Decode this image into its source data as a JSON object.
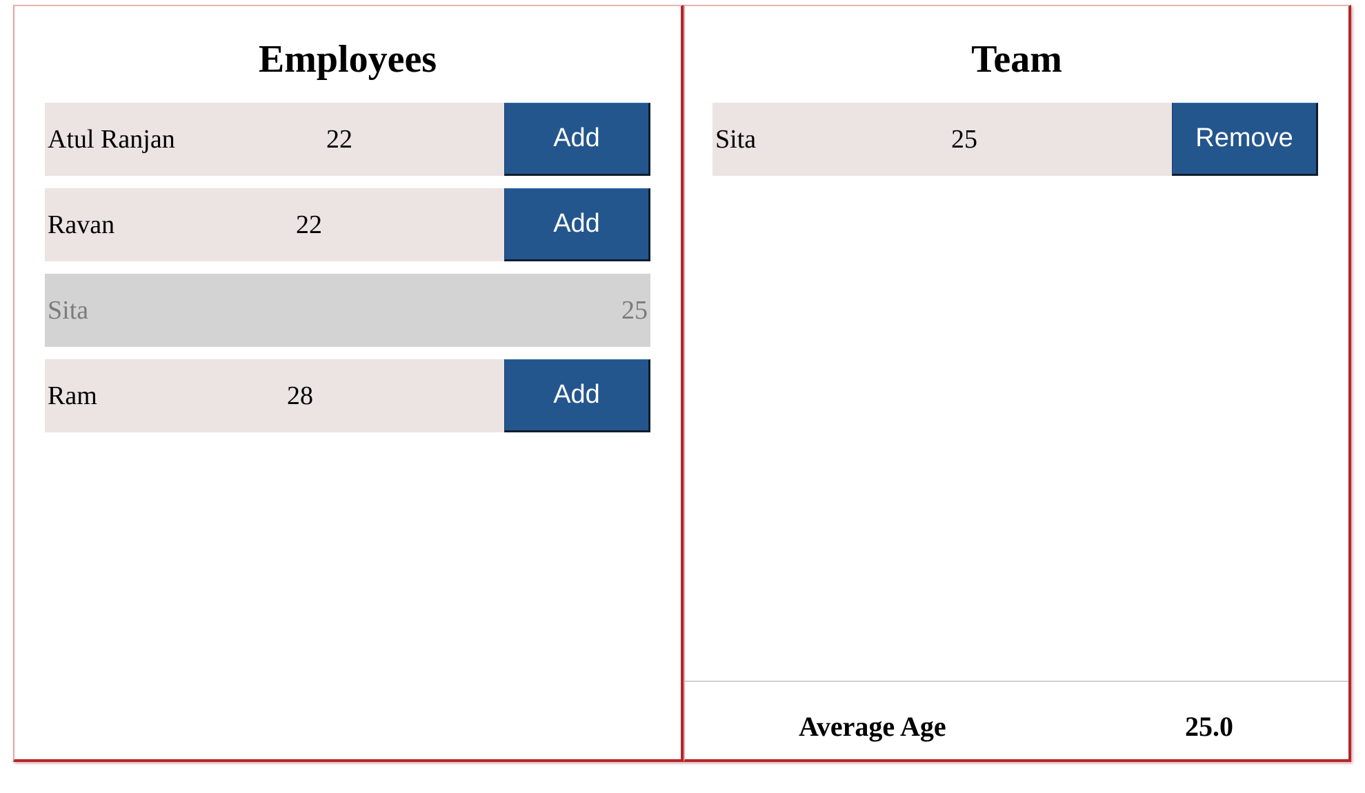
{
  "employees_panel": {
    "title": "Employees",
    "rows": [
      {
        "name": "Atul Ranjan",
        "age": "22",
        "button_label": "Add",
        "in_team": false
      },
      {
        "name": "Ravan",
        "age": "22",
        "button_label": "Add",
        "in_team": false
      },
      {
        "name": "Sita",
        "age": "25",
        "in_team": true
      },
      {
        "name": "Ram",
        "age": "28",
        "button_label": "Add",
        "in_team": false
      }
    ]
  },
  "team_panel": {
    "title": "Team",
    "rows": [
      {
        "name": "Sita",
        "age": "25",
        "button_label": "Remove"
      }
    ],
    "average_label": "Average Age",
    "average_value": "25.0"
  },
  "colors": {
    "row_background": "#ece3e3",
    "row_disabled": "#d3d3d3",
    "button": "#24568e",
    "panel_border": "#b5262a"
  }
}
